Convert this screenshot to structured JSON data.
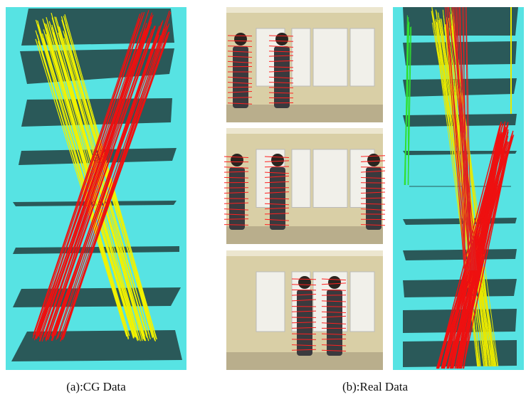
{
  "figure": {
    "captions": [
      "(a):CG Data",
      "(b):Real Data"
    ]
  }
}
